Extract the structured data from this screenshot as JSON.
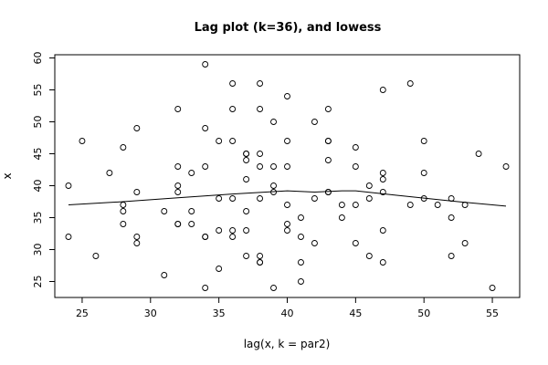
{
  "chart_data": {
    "type": "scatter",
    "title": "Lag plot (k=36), and lowess",
    "xlabel": "lag(x, k = par2)",
    "ylabel": "x",
    "xlim": [
      23,
      57
    ],
    "ylim": [
      22.5,
      60.5
    ],
    "xticks": [
      25,
      30,
      35,
      40,
      45,
      50,
      55
    ],
    "yticks": [
      25,
      30,
      35,
      40,
      45,
      50,
      55,
      60
    ],
    "grid": false,
    "points": [
      [
        24,
        40
      ],
      [
        24,
        32
      ],
      [
        25,
        47
      ],
      [
        26,
        29
      ],
      [
        27,
        42
      ],
      [
        28,
        46
      ],
      [
        28,
        37
      ],
      [
        28,
        36
      ],
      [
        28,
        34
      ],
      [
        29,
        49
      ],
      [
        29,
        39
      ],
      [
        29,
        32
      ],
      [
        29,
        31
      ],
      [
        31,
        36
      ],
      [
        31,
        26
      ],
      [
        32,
        52
      ],
      [
        32,
        43
      ],
      [
        32,
        40
      ],
      [
        32,
        39
      ],
      [
        32,
        34
      ],
      [
        32,
        34
      ],
      [
        33,
        42
      ],
      [
        33,
        36
      ],
      [
        33,
        34
      ],
      [
        34,
        59
      ],
      [
        34,
        49
      ],
      [
        34,
        43
      ],
      [
        34,
        32
      ],
      [
        34,
        32
      ],
      [
        34,
        24
      ],
      [
        35,
        47
      ],
      [
        35,
        38
      ],
      [
        35,
        33
      ],
      [
        35,
        27
      ],
      [
        36,
        56
      ],
      [
        36,
        52
      ],
      [
        36,
        47
      ],
      [
        36,
        38
      ],
      [
        36,
        33
      ],
      [
        36,
        32
      ],
      [
        37,
        45
      ],
      [
        37,
        45
      ],
      [
        37,
        44
      ],
      [
        37,
        41
      ],
      [
        37,
        36
      ],
      [
        37,
        33
      ],
      [
        37,
        29
      ],
      [
        38,
        56
      ],
      [
        38,
        52
      ],
      [
        38,
        45
      ],
      [
        38,
        43
      ],
      [
        38,
        38
      ],
      [
        38,
        29
      ],
      [
        38,
        28
      ],
      [
        38,
        28
      ],
      [
        39,
        50
      ],
      [
        39,
        43
      ],
      [
        39,
        40
      ],
      [
        39,
        39
      ],
      [
        39,
        24
      ],
      [
        40,
        54
      ],
      [
        40,
        47
      ],
      [
        40,
        43
      ],
      [
        40,
        37
      ],
      [
        40,
        34
      ],
      [
        40,
        33
      ],
      [
        41,
        35
      ],
      [
        41,
        32
      ],
      [
        41,
        28
      ],
      [
        41,
        25
      ],
      [
        42,
        50
      ],
      [
        42,
        38
      ],
      [
        42,
        31
      ],
      [
        43,
        52
      ],
      [
        43,
        47
      ],
      [
        43,
        47
      ],
      [
        43,
        44
      ],
      [
        43,
        39
      ],
      [
        43,
        39
      ],
      [
        44,
        37
      ],
      [
        44,
        35
      ],
      [
        45,
        46
      ],
      [
        45,
        43
      ],
      [
        45,
        37
      ],
      [
        45,
        31
      ],
      [
        46,
        40
      ],
      [
        46,
        38
      ],
      [
        46,
        29
      ],
      [
        47,
        55
      ],
      [
        47,
        42
      ],
      [
        47,
        41
      ],
      [
        47,
        39
      ],
      [
        47,
        33
      ],
      [
        47,
        28
      ],
      [
        49,
        56
      ],
      [
        49,
        37
      ],
      [
        50,
        47
      ],
      [
        50,
        42
      ],
      [
        50,
        38
      ],
      [
        51,
        37
      ],
      [
        52,
        38
      ],
      [
        52,
        35
      ],
      [
        52,
        29
      ],
      [
        53,
        37
      ],
      [
        53,
        31
      ],
      [
        54,
        45
      ],
      [
        55,
        24
      ],
      [
        56,
        43
      ]
    ],
    "lowess": [
      [
        24,
        37.0
      ],
      [
        28,
        37.5
      ],
      [
        32,
        38.1
      ],
      [
        36,
        38.7
      ],
      [
        40,
        39.2
      ],
      [
        42,
        39.0
      ],
      [
        44,
        39.2
      ],
      [
        45,
        39.2
      ],
      [
        48,
        38.5
      ],
      [
        52,
        37.6
      ],
      [
        56,
        36.8
      ]
    ]
  }
}
